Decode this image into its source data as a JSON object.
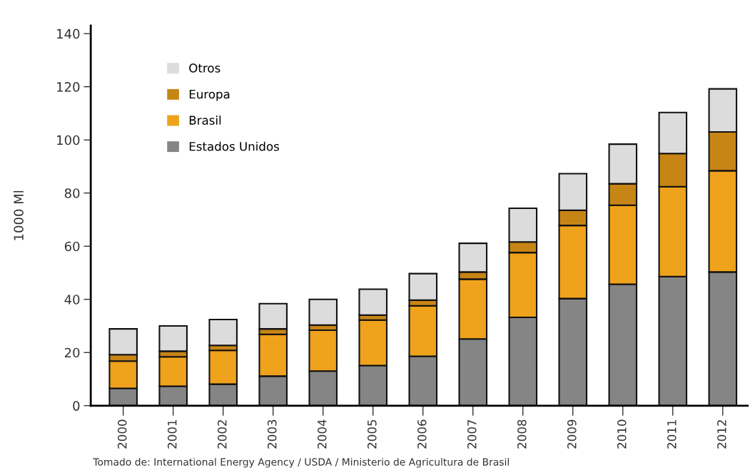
{
  "chart_data": {
    "type": "bar",
    "stacked": true,
    "ylabel": "1000 Ml",
    "categories": [
      "2000",
      "2001",
      "2002",
      "2003",
      "2004",
      "2005",
      "2006",
      "2007",
      "2008",
      "2009",
      "2010",
      "2011",
      "2012"
    ],
    "series": [
      {
        "name": "Estados Unidos",
        "color": "#858585",
        "values": [
          6.5,
          7.3,
          8.1,
          11.1,
          13.0,
          15.1,
          18.6,
          25.1,
          33.2,
          40.3,
          45.7,
          48.6,
          50.3
        ]
      },
      {
        "name": "Brasil",
        "color": "#efa21b",
        "values": [
          10.3,
          11.1,
          12.7,
          15.7,
          15.4,
          17.1,
          19.0,
          22.5,
          24.4,
          27.5,
          29.7,
          33.8,
          38.1
        ]
      },
      {
        "name": "Europa",
        "color": "#c78516",
        "values": [
          2.4,
          2.1,
          1.9,
          2.1,
          1.9,
          1.9,
          2.1,
          2.7,
          4.0,
          5.7,
          8.1,
          12.5,
          14.6
        ]
      },
      {
        "name": "Otros",
        "color": "#dcdcdc",
        "values": [
          9.7,
          9.5,
          9.7,
          9.5,
          9.7,
          9.7,
          10.0,
          10.8,
          12.7,
          13.8,
          14.9,
          15.4,
          16.2
        ]
      }
    ],
    "ylim": [
      0,
      143
    ],
    "yticks": [
      0,
      20,
      40,
      60,
      80,
      100,
      120,
      140
    ],
    "grid": false,
    "legend": "top left",
    "annotations": [
      "Tomado de: International Energy Agency / USDA / Ministerio de Agricultura de Brasil"
    ]
  }
}
